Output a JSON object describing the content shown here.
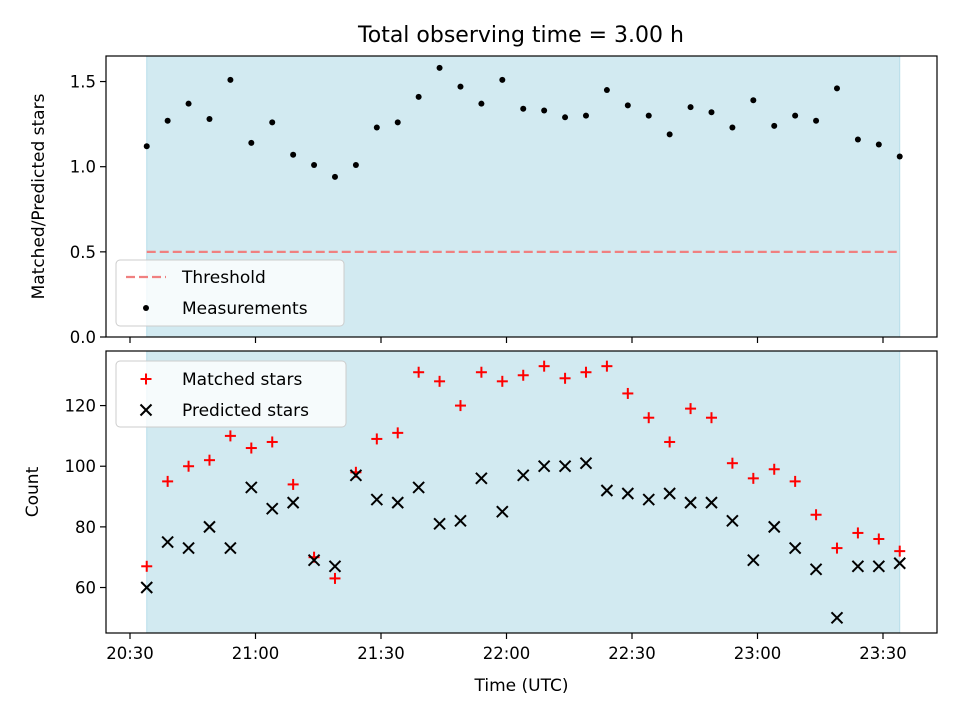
{
  "title": "Total observing time = 3.00 h",
  "colors": {
    "band": "#add8e6",
    "threshold": "#f08080",
    "matched": "#ff0000",
    "predicted": "#000000",
    "measurement": "#000000"
  },
  "chart_data": [
    {
      "type": "scatter",
      "ylabel": "Matched/Predicted stars",
      "xlabel": "",
      "ylim": [
        0,
        1.65
      ],
      "yticks": [
        0.0,
        0.5,
        1.0,
        1.5
      ],
      "ytick_labels": [
        "0.0",
        "0.5",
        "1.0",
        "1.5"
      ],
      "xticks": [
        "20:30",
        "21:00",
        "21:30",
        "22:00",
        "22:30",
        "23:00",
        "23:30"
      ],
      "shaded_span": [
        "20:34",
        "23:34"
      ],
      "threshold": 0.5,
      "legend": {
        "position": "lower-left",
        "entries": [
          "Threshold",
          "Measurements"
        ]
      },
      "x": [
        "20:34",
        "20:39",
        "20:44",
        "20:49",
        "20:54",
        "20:59",
        "21:04",
        "21:09",
        "21:14",
        "21:19",
        "21:24",
        "21:29",
        "21:34",
        "21:39",
        "21:44",
        "21:49",
        "21:54",
        "21:59",
        "22:04",
        "22:09",
        "22:14",
        "22:19",
        "22:24",
        "22:29",
        "22:34",
        "22:39",
        "22:44",
        "22:49",
        "22:54",
        "22:59",
        "23:04",
        "23:09",
        "23:14",
        "23:19",
        "23:24",
        "23:29",
        "23:34"
      ],
      "values": [
        1.12,
        1.27,
        1.37,
        1.28,
        1.51,
        1.14,
        1.26,
        1.07,
        1.01,
        0.94,
        1.01,
        1.23,
        1.26,
        1.41,
        1.58,
        1.47,
        1.37,
        1.51,
        1.34,
        1.33,
        1.29,
        1.3,
        1.45,
        1.36,
        1.3,
        1.19,
        1.35,
        1.32,
        1.23,
        1.39,
        1.24,
        1.3,
        1.27,
        1.46,
        1.16,
        1.13,
        1.06
      ]
    },
    {
      "type": "scatter",
      "ylabel": "Count",
      "xlabel": "Time (UTC)",
      "ylim": [
        45,
        138
      ],
      "yticks": [
        60,
        80,
        100,
        120
      ],
      "ytick_labels": [
        "60",
        "80",
        "100",
        "120"
      ],
      "xticks": [
        "20:30",
        "21:00",
        "21:30",
        "22:00",
        "22:30",
        "23:00",
        "23:30"
      ],
      "shaded_span": [
        "20:34",
        "23:34"
      ],
      "legend": {
        "position": "upper-left",
        "entries": [
          "Matched stars",
          "Predicted stars"
        ]
      },
      "x": [
        "20:34",
        "20:39",
        "20:44",
        "20:49",
        "20:54",
        "20:59",
        "21:04",
        "21:09",
        "21:14",
        "21:19",
        "21:24",
        "21:29",
        "21:34",
        "21:39",
        "21:44",
        "21:49",
        "21:54",
        "21:59",
        "22:04",
        "22:09",
        "22:14",
        "22:19",
        "22:24",
        "22:29",
        "22:34",
        "22:39",
        "22:44",
        "22:49",
        "22:54",
        "22:59",
        "23:04",
        "23:09",
        "23:14",
        "23:19",
        "23:24",
        "23:29",
        "23:34"
      ],
      "series": [
        {
          "name": "Matched stars",
          "marker": "plus",
          "values": [
            67,
            95,
            100,
            102,
            110,
            106,
            108,
            94,
            70,
            63,
            98,
            109,
            111,
            131,
            128,
            120,
            131,
            128,
            130,
            133,
            129,
            131,
            133,
            124,
            116,
            108,
            119,
            116,
            101,
            96,
            99,
            95,
            84,
            73,
            78,
            76,
            72
          ]
        },
        {
          "name": "Predicted stars",
          "marker": "x",
          "values": [
            60,
            75,
            73,
            80,
            73,
            93,
            86,
            88,
            69,
            67,
            97,
            89,
            88,
            93,
            81,
            82,
            96,
            85,
            97,
            100,
            100,
            101,
            92,
            91,
            89,
            91,
            88,
            88,
            82,
            69,
            80,
            73,
            66,
            50,
            67,
            67,
            68
          ]
        }
      ]
    }
  ]
}
